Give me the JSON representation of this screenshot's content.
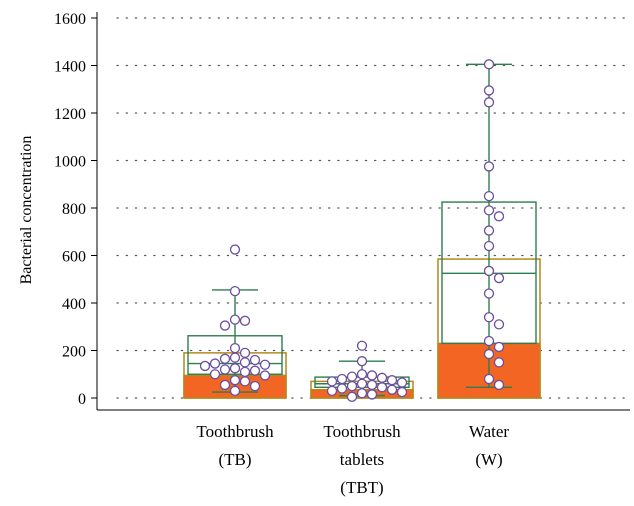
{
  "chart_data": {
    "type": "box",
    "title": "",
    "ylabel": "Bacterial concentration",
    "xlabel": "",
    "ylim": [
      0,
      1600
    ],
    "yticks": [
      0,
      200,
      400,
      600,
      800,
      1000,
      1200,
      1400,
      1600
    ],
    "grid": true,
    "colors": {
      "bar_fill": "#f26522",
      "bar_stroke": "#b3891f",
      "box_stroke": "#2e7d4f",
      "point_fill": "#ffffff",
      "point_stroke": "#6b4fa0",
      "grid": "#555555"
    },
    "categories": [
      {
        "label_lines": [
          "Toothbrush",
          "(TB)"
        ],
        "bar_mean": 190,
        "bar_median": 95,
        "box": {
          "q1": 100,
          "median": 145,
          "q3": 262,
          "whisker_low": 25,
          "whisker_high": 455
        },
        "points": [
          625,
          450,
          330,
          325,
          305,
          210,
          190,
          170,
          165,
          160,
          150,
          145,
          140,
          135,
          125,
          120,
          115,
          110,
          100,
          95,
          75,
          70,
          55,
          50,
          30
        ]
      },
      {
        "label_lines": [
          "Toothbrush",
          "tablets",
          "(TBT)"
        ],
        "bar_mean": 70,
        "bar_median": 35,
        "box": {
          "q1": 45,
          "median": 60,
          "q3": 88,
          "whisker_low": 10,
          "whisker_high": 155
        },
        "points": [
          220,
          155,
          100,
          95,
          90,
          85,
          80,
          75,
          70,
          65,
          60,
          55,
          50,
          45,
          40,
          35,
          30,
          25,
          20,
          15,
          5
        ]
      },
      {
        "label_lines": [
          "Water",
          "(W)"
        ],
        "bar_mean": 585,
        "bar_median": 230,
        "box": {
          "q1": 230,
          "median": 525,
          "q3": 825,
          "whisker_low": 45,
          "whisker_high": 1405
        },
        "points": [
          1405,
          1295,
          1245,
          975,
          850,
          790,
          765,
          705,
          640,
          535,
          505,
          440,
          340,
          310,
          240,
          215,
          185,
          150,
          80,
          55
        ]
      }
    ]
  }
}
